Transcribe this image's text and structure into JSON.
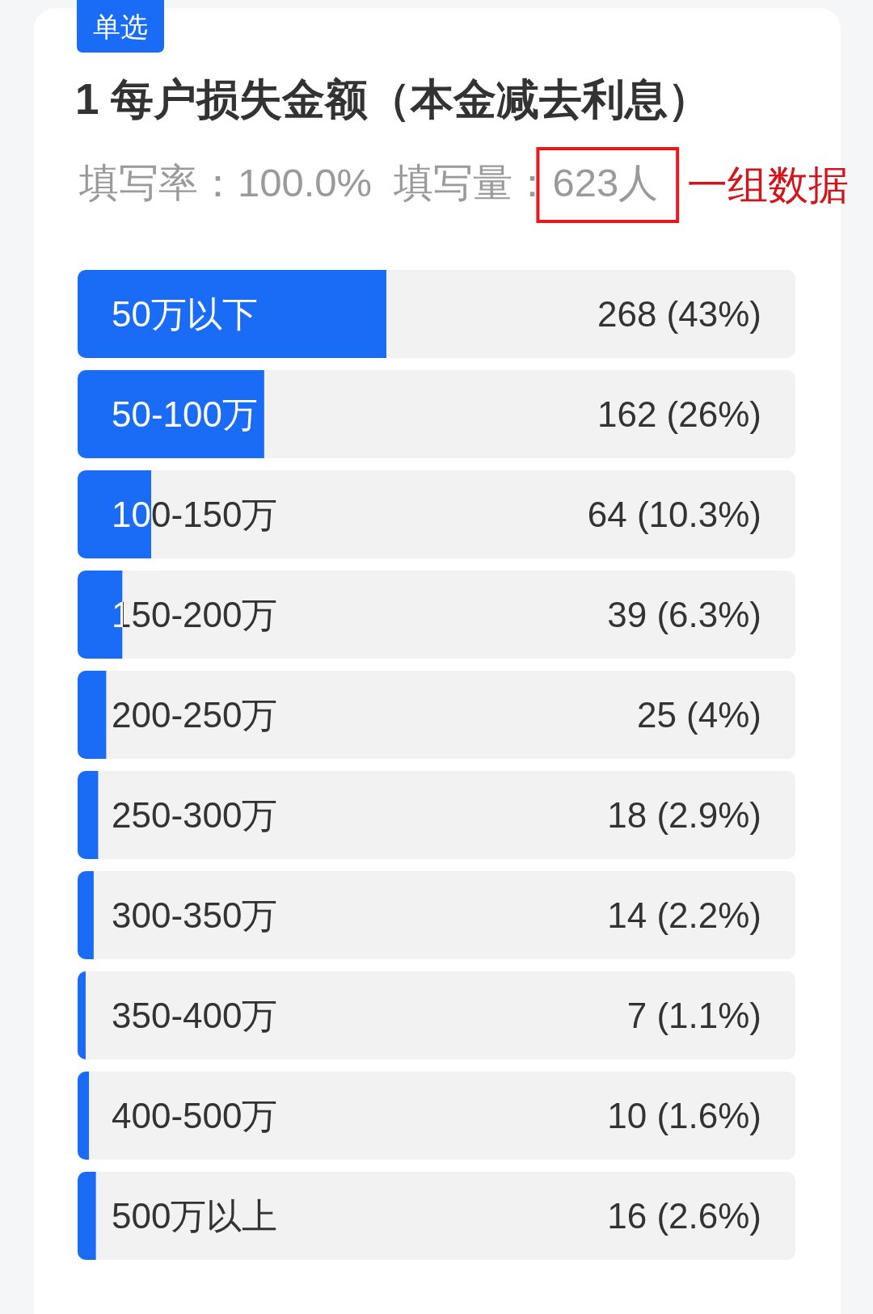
{
  "chart_data": {
    "type": "bar",
    "orientation": "horizontal",
    "title": "1 每户损失金额（本金减去利息）",
    "subtitle": "填写率：100.0%  填写量：623人",
    "categories": [
      "50万以下",
      "50-100万",
      "100-150万",
      "150-200万",
      "200-250万",
      "250-300万",
      "300-350万",
      "350-400万",
      "400-500万",
      "500万以上"
    ],
    "values": [
      268,
      162,
      64,
      39,
      25,
      18,
      14,
      7,
      10,
      16
    ],
    "value_labels": [
      "268 (43%)",
      "162 (26%)",
      "64 (10.3%)",
      "39 (6.3%)",
      "25 (4%)",
      "18 (2.9%)",
      "14 (2.2%)",
      "7 (1.1%)",
      "10 (1.6%)",
      "16 (2.6%)"
    ],
    "color": "#1a6cf6",
    "xlim": [
      0,
      623
    ],
    "annotations": [
      "单选",
      "一组数据"
    ]
  }
}
